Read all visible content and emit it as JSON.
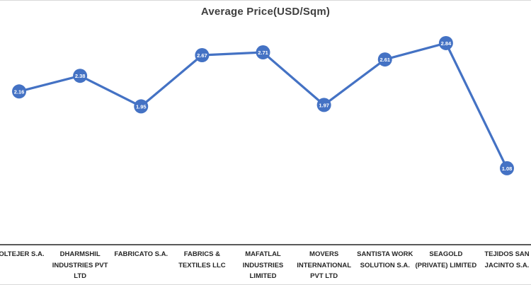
{
  "chart_data": {
    "type": "line",
    "title": "Average Price(USD/Sqm)",
    "categories": [
      "COLTEJER S.A.",
      "DHARMSHIL INDUSTRIES PVT LTD",
      "FABRICATO S.A.",
      "FABRICS & TEXTILES LLC",
      "MAFATLAL INDUSTRIES LIMITED",
      "MOVERS INTERNATIONAL PVT LTD",
      "SANTISTA WORK SOLUTION S.A.",
      "SEAGOLD (PRIVATE) LIMITED",
      "TEJIDOS SAN JACINTO S.A."
    ],
    "values": [
      2.16,
      2.38,
      1.95,
      2.67,
      2.71,
      1.97,
      2.61,
      2.84,
      1.08
    ],
    "data_labels": [
      "2.16",
      "2.38",
      "1.95",
      "2.67",
      "2.71",
      "1.97",
      "2.61",
      "2.84",
      "1.08"
    ],
    "xlabel": "",
    "ylabel": "",
    "ylim": [
      0,
      3.4
    ],
    "grid": false,
    "legend": "none",
    "y_axis_visible": false,
    "data_labels_position": "inside markers",
    "colors": {
      "line": "#4472C4",
      "marker_fill": "#4472C4",
      "data_label_text": "#ffffff",
      "title_text": "#3f3f3f",
      "axis_line": "#595959",
      "category_label_text": "#262626",
      "chart_border": "#d9d9d9"
    }
  }
}
